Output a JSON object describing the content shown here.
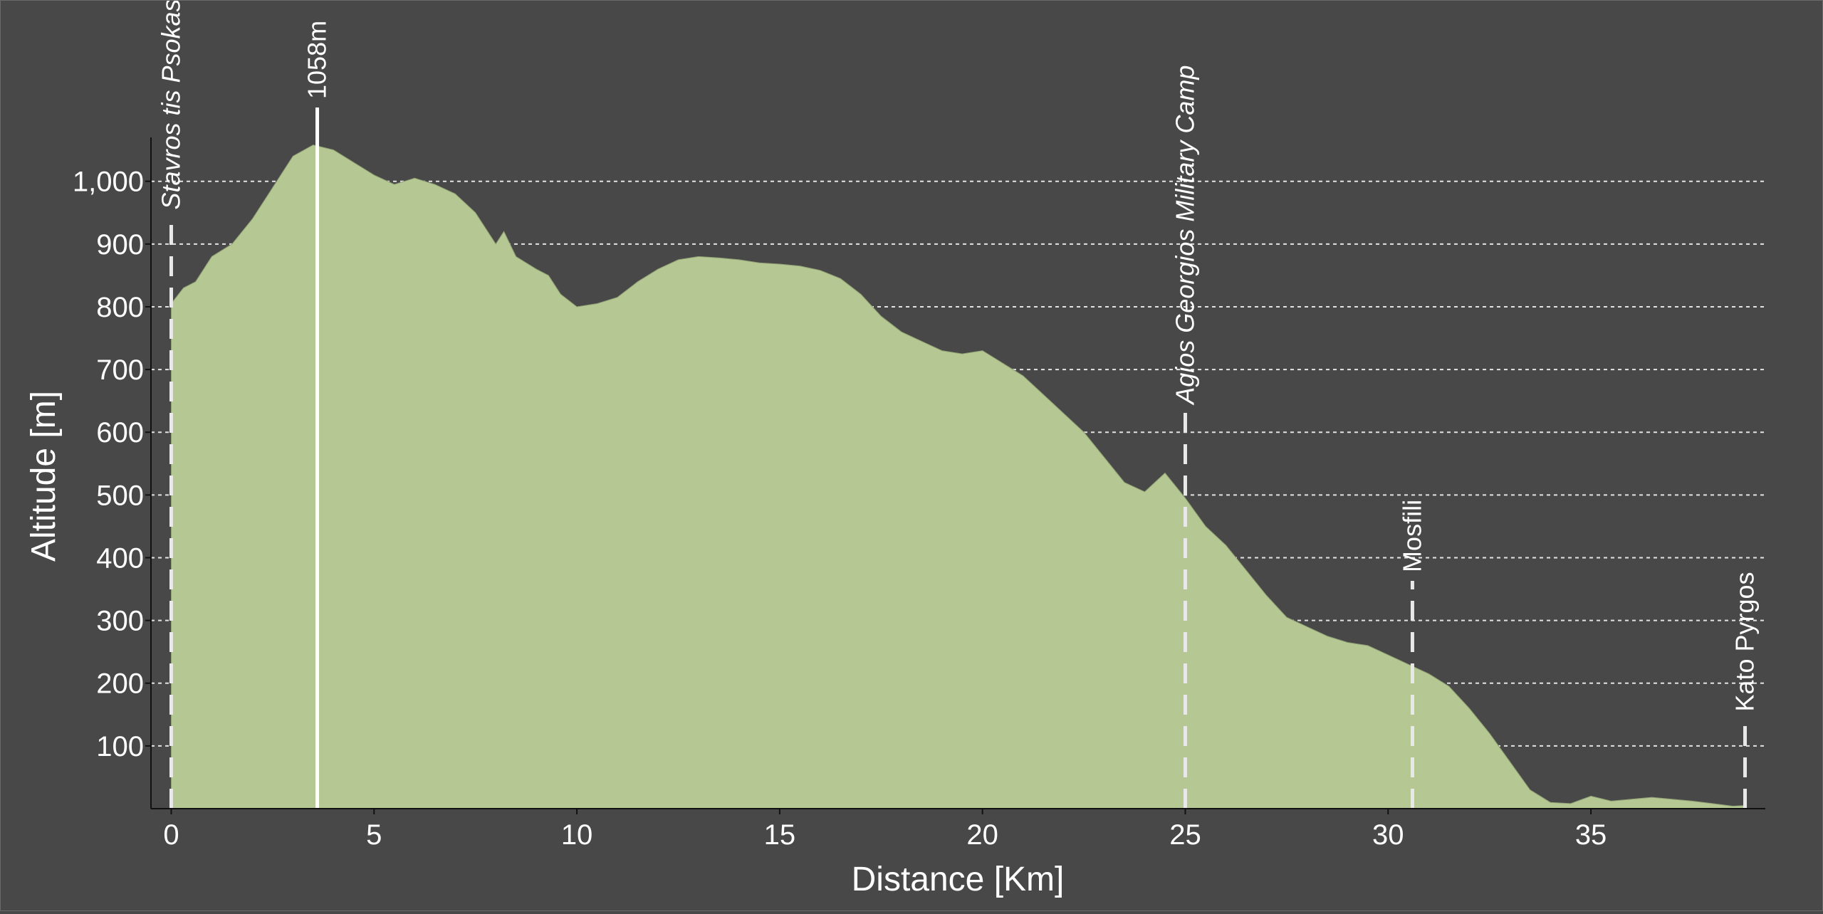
{
  "chart_data": {
    "type": "area",
    "title": "",
    "xlabel": "Distance [Km]",
    "ylabel": "Altitude [m]",
    "xlim": [
      -0.5,
      39.3
    ],
    "ylim": [
      0,
      1070
    ],
    "x_ticks": [
      0,
      5,
      10,
      15,
      20,
      25,
      30,
      35
    ],
    "x_tick_labels": [
      "0",
      "5",
      "10",
      "15",
      "20",
      "25",
      "30",
      "35"
    ],
    "y_ticks": [
      100,
      200,
      300,
      400,
      500,
      600,
      700,
      800,
      900,
      1000
    ],
    "y_tick_labels": [
      "100",
      "200",
      "300",
      "400",
      "500",
      "600",
      "700",
      "800",
      "900",
      "1,000"
    ],
    "grid": true,
    "fill_color": "#b5c793",
    "background_color": "#484848",
    "series": [
      {
        "x": [
          0,
          0.3,
          0.6,
          1.0,
          1.5,
          2.0,
          2.5,
          3.0,
          3.5,
          4.0,
          4.5,
          5.0,
          5.5,
          6.0,
          6.5,
          7.0,
          7.5,
          8.0,
          8.2,
          8.5,
          9.0,
          9.3,
          9.6,
          10.0,
          10.5,
          11.0,
          11.5,
          12.0,
          12.5,
          13.0,
          13.5,
          14.0,
          14.5,
          15.0,
          15.5,
          16.0,
          16.5,
          17.0,
          17.5,
          18.0,
          18.5,
          19.0,
          19.5,
          20.0,
          20.5,
          21.0,
          21.5,
          22.0,
          22.5,
          23.0,
          23.5,
          24.0,
          24.5,
          25.0,
          25.5,
          26.0,
          26.5,
          27.0,
          27.5,
          28.0,
          28.5,
          29.0,
          29.5,
          30.0,
          30.5,
          31.0,
          31.5,
          32.0,
          32.5,
          33.0,
          33.5,
          34.0,
          34.5,
          35.0,
          35.5,
          36.0,
          36.5,
          37.0,
          37.5,
          38.0,
          38.5,
          38.8
        ],
        "y": [
          805,
          830,
          840,
          880,
          900,
          940,
          990,
          1040,
          1058,
          1050,
          1030,
          1010,
          995,
          1005,
          995,
          980,
          950,
          900,
          920,
          880,
          860,
          850,
          820,
          800,
          805,
          815,
          840,
          860,
          875,
          880,
          878,
          875,
          870,
          868,
          865,
          858,
          845,
          820,
          785,
          760,
          745,
          730,
          725,
          730,
          710,
          690,
          660,
          630,
          600,
          560,
          520,
          505,
          535,
          495,
          450,
          420,
          380,
          340,
          305,
          290,
          275,
          265,
          260,
          245,
          230,
          215,
          195,
          160,
          120,
          75,
          30,
          10,
          8,
          20,
          12,
          15,
          18,
          15,
          12,
          8,
          4,
          5
        ]
      }
    ],
    "markers": [
      {
        "x": 0,
        "label": "Stavros tis Psokas",
        "style": "dashed"
      },
      {
        "x": 3.6,
        "label": "1058m",
        "style": "solid"
      },
      {
        "x": 25,
        "label": "Agios Georgios Military Camp",
        "style": "dashed"
      },
      {
        "x": 30.6,
        "label": "Mosfili",
        "style": "dashed"
      },
      {
        "x": 38.8,
        "label": "Kato Pyrgos",
        "style": "dashed"
      }
    ]
  }
}
